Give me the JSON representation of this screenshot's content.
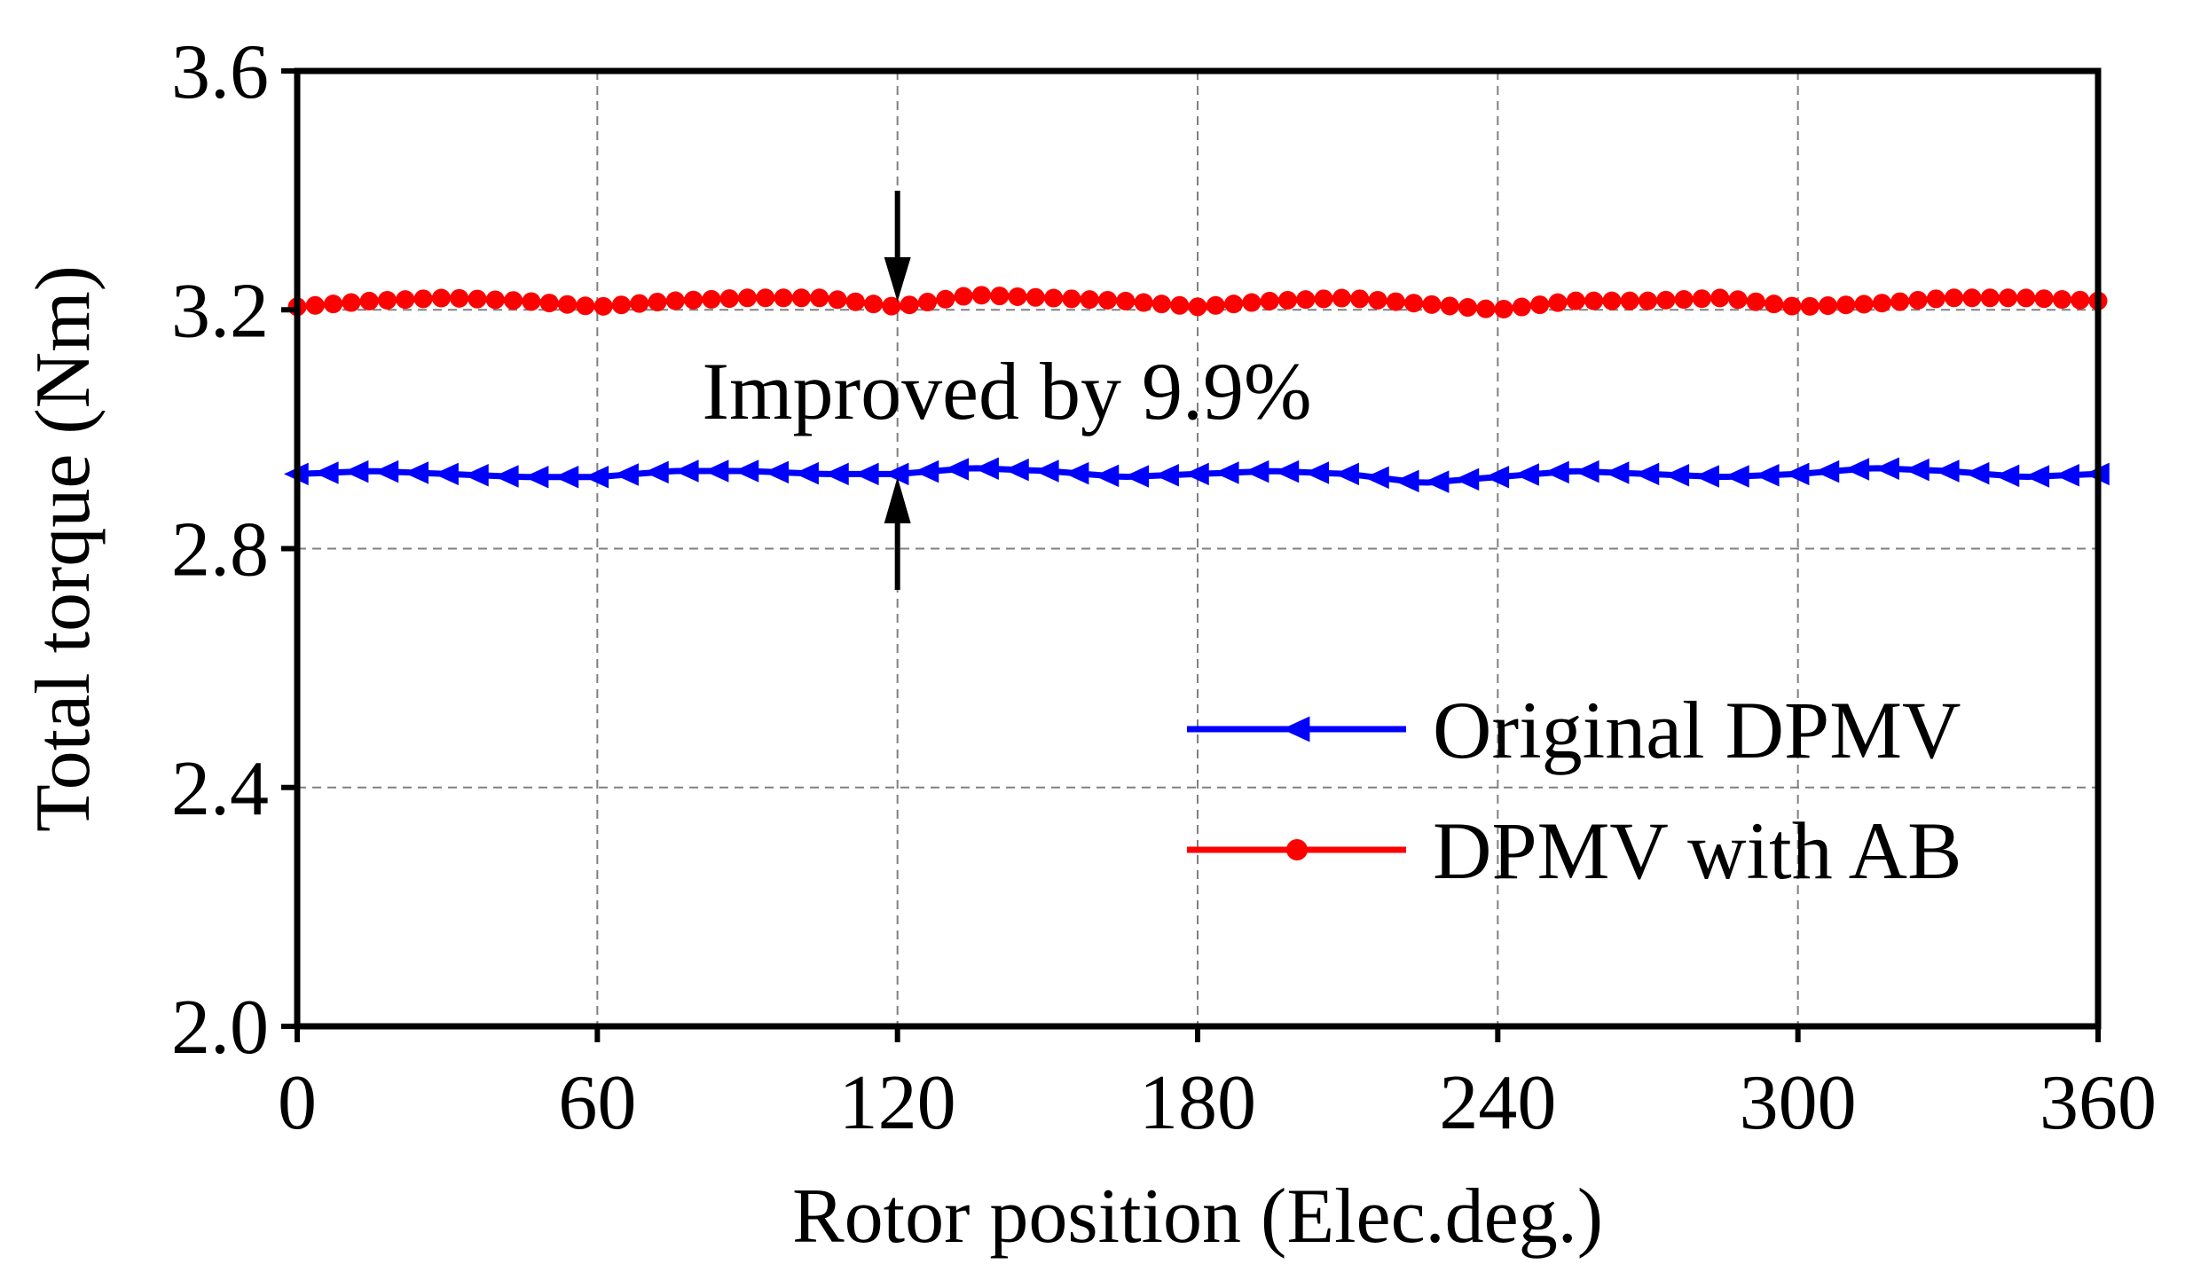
{
  "chart_data": {
    "type": "line",
    "title": "",
    "xlabel": "Rotor position (Elec.deg.)",
    "ylabel": "Total torque (Nm)",
    "xlim": [
      0,
      360
    ],
    "ylim": [
      2.0,
      3.6
    ],
    "xticks": [
      0,
      60,
      120,
      180,
      240,
      300,
      360
    ],
    "xtick_labels": [
      "0",
      "60",
      "120",
      "180",
      "240",
      "300",
      "360"
    ],
    "yticks": [
      2.0,
      2.4,
      2.8,
      3.2,
      3.6
    ],
    "ytick_labels": [
      "2.0",
      "2.4",
      "2.8",
      "3.2",
      "3.6"
    ],
    "grid": true,
    "legend_position": "bottom-right",
    "series": [
      {
        "name": "Original DPMV",
        "color": "#0000ff",
        "marker": "left-triangle",
        "x": [
          0,
          15,
          30,
          45,
          60,
          75,
          90,
          105,
          120,
          135,
          150,
          165,
          180,
          195,
          210,
          225,
          240,
          255,
          270,
          285,
          300,
          315,
          330,
          345,
          360
        ],
        "values": [
          2.925,
          2.93,
          2.925,
          2.92,
          2.92,
          2.93,
          2.93,
          2.925,
          2.925,
          2.935,
          2.93,
          2.92,
          2.925,
          2.93,
          2.925,
          2.91,
          2.92,
          2.93,
          2.925,
          2.92,
          2.925,
          2.935,
          2.93,
          2.92,
          2.925
        ]
      },
      {
        "name": "DPMV with AB",
        "color": "#ff0000",
        "marker": "circle",
        "x": [
          0,
          15,
          30,
          45,
          60,
          75,
          90,
          105,
          120,
          135,
          150,
          165,
          180,
          195,
          210,
          225,
          240,
          255,
          270,
          285,
          300,
          315,
          330,
          345,
          360
        ],
        "values": [
          3.205,
          3.215,
          3.22,
          3.215,
          3.205,
          3.215,
          3.22,
          3.22,
          3.205,
          3.225,
          3.22,
          3.215,
          3.205,
          3.215,
          3.22,
          3.21,
          3.2,
          3.215,
          3.215,
          3.22,
          3.205,
          3.21,
          3.22,
          3.22,
          3.215
        ]
      }
    ],
    "annotations": [
      {
        "text": "Improved by 9.9%",
        "x": 120
      }
    ]
  }
}
